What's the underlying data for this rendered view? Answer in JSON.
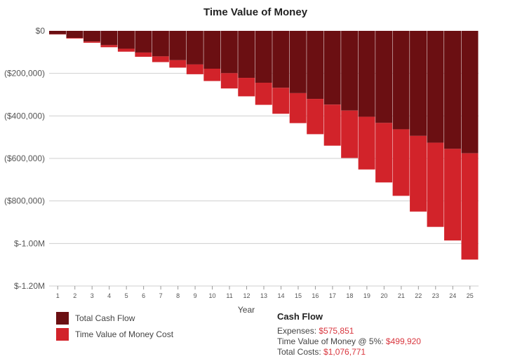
{
  "chart_data": {
    "type": "bar",
    "stacked": true,
    "title": "Time Value of Money",
    "xlabel": "Year",
    "ylabel": "",
    "ylim": [
      -1200000,
      0
    ],
    "yticks": [
      0,
      -200000,
      -400000,
      -600000,
      -800000,
      -1000000,
      -1200000
    ],
    "ytick_labels": [
      "$0",
      "($200,000)",
      "($400,000)",
      "($600,000)",
      "($800,000)",
      "$-1.00M",
      "$-1.20M"
    ],
    "categories": [
      "1",
      "2",
      "3",
      "4",
      "5",
      "6",
      "7",
      "8",
      "9",
      "10",
      "11",
      "12",
      "13",
      "14",
      "15",
      "16",
      "17",
      "18",
      "19",
      "20",
      "21",
      "22",
      "23",
      "24",
      "25"
    ],
    "series": [
      {
        "name": "Total Cash Flow",
        "color": "#6b0f12",
        "values": [
          -16000,
          -33000,
          -50000,
          -67000,
          -84000,
          -102000,
          -120000,
          -138000,
          -158000,
          -178000,
          -199000,
          -221000,
          -244000,
          -268000,
          -293000,
          -320000,
          -347000,
          -375000,
          -404000,
          -433000,
          -463000,
          -494000,
          -526000,
          -555000,
          -575851
        ]
      },
      {
        "name": "Time Value of Money Cost",
        "color": "#d2232a",
        "values": [
          -1000,
          -3000,
          -6000,
          -10000,
          -14000,
          -20000,
          -27000,
          -35000,
          -46000,
          -58000,
          -72000,
          -87000,
          -104000,
          -122000,
          -141000,
          -166000,
          -193000,
          -223000,
          -248000,
          -280000,
          -313000,
          -356000,
          -396000,
          -431000,
          -499920
        ]
      }
    ],
    "legend_position": "bottom-left",
    "grid": true
  },
  "summary": {
    "title": "Cash Flow",
    "expenses_label": "Expenses: ",
    "expenses_value": "$575,851",
    "tvm_label": "Time Value of Money @ 5%: ",
    "tvm_value": "$499,920",
    "total_label": "Total Costs: ",
    "total_value": "$1,076,771"
  }
}
